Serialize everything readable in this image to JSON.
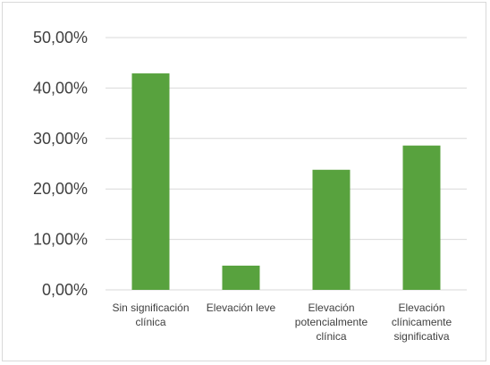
{
  "chart_data": {
    "type": "bar",
    "title": "",
    "xlabel": "",
    "ylabel": "",
    "categories": [
      [
        "Sin significación",
        "clínica"
      ],
      [
        "Elevación leve"
      ],
      [
        "Elevación",
        "potencialmente",
        "clínica"
      ],
      [
        "Elevación",
        "clínicamente",
        "significativa"
      ]
    ],
    "values": [
      42.9,
      4.8,
      23.8,
      28.6
    ],
    "ylim": [
      0,
      50
    ],
    "yticks": [
      0,
      10,
      20,
      30,
      40,
      50
    ],
    "ytick_labels": [
      "0,00%",
      "10,00%",
      "20,00%",
      "30,00%",
      "40,00%",
      "50,00%"
    ],
    "grid": true,
    "legend": "none",
    "bar_color": "#58a23e",
    "grid_color": "#d9d9d9"
  }
}
